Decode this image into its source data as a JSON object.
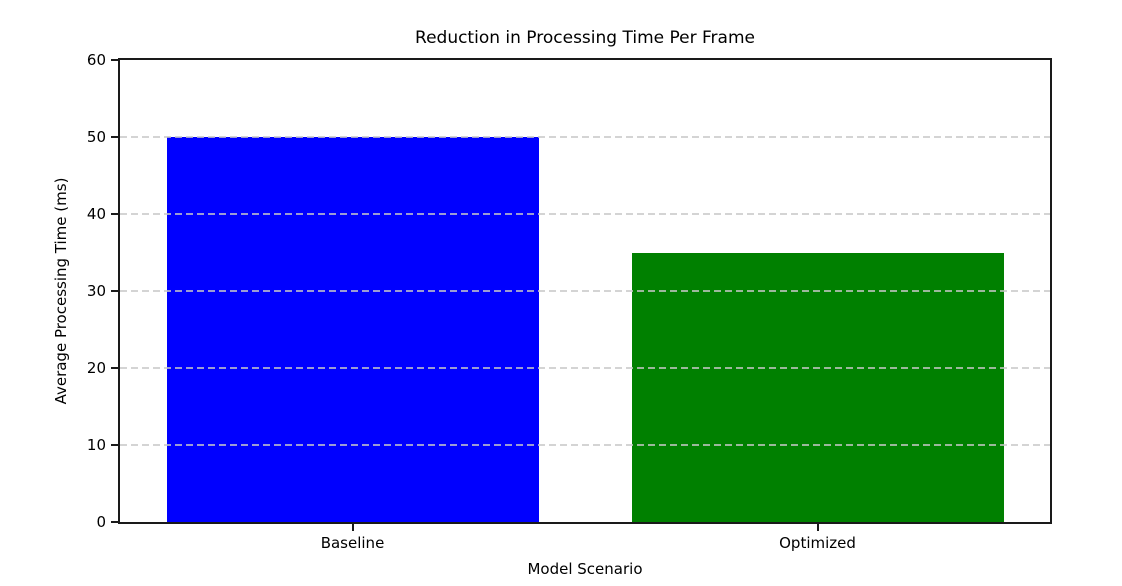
{
  "chart_data": {
    "type": "bar",
    "title": "Reduction in Processing Time Per Frame",
    "xlabel": "Model Scenario",
    "ylabel": "Average Processing Time (ms)",
    "categories": [
      "Baseline",
      "Optimized"
    ],
    "values": [
      50,
      35
    ],
    "bar_colors": [
      "#0000ff",
      "#008000"
    ],
    "ylim": [
      0,
      60
    ],
    "yticks": [
      0,
      10,
      20,
      30,
      40,
      50,
      60
    ],
    "bar_width_fraction": 0.4,
    "grid": {
      "axis": "y",
      "linestyle": "dashed",
      "color": "#c8c8c8",
      "over_bars": true
    },
    "legend": "none",
    "spine_color": "#1a1a1a",
    "background_color": "#ffffff"
  }
}
